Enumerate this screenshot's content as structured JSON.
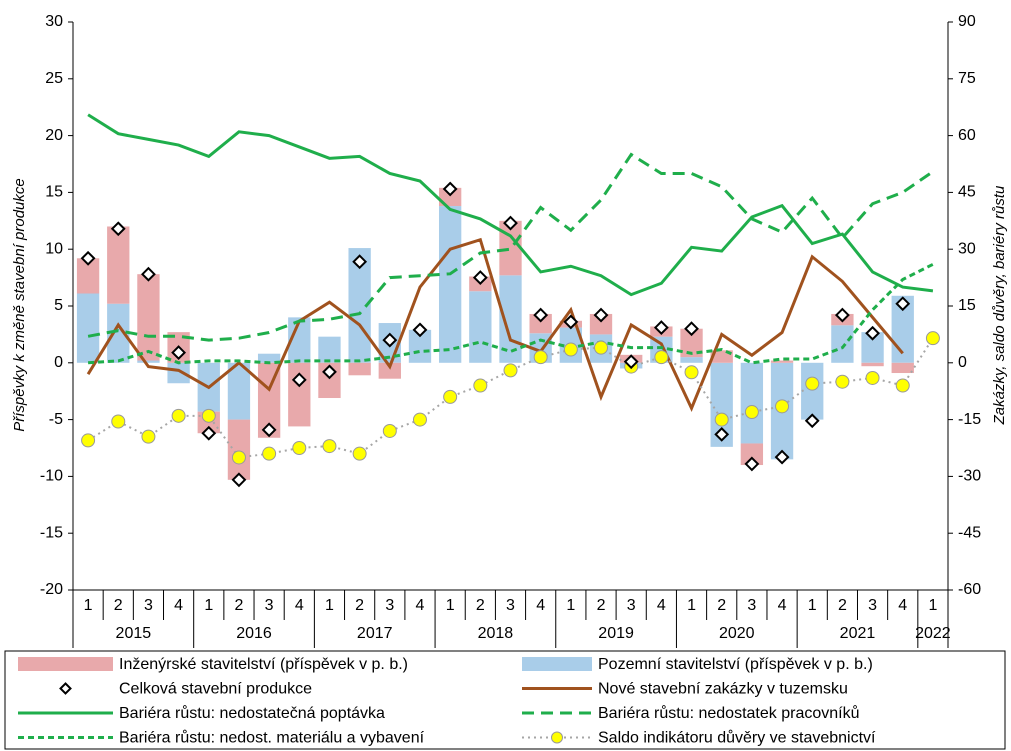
{
  "chart_data": {
    "type": "combo",
    "y_label": "Příspěvky k změně stavební produkce",
    "y2_label": "Zakázky, saldo důvěry, bariéry růstu",
    "categories": [
      "1",
      "2",
      "3",
      "4",
      "1",
      "2",
      "3",
      "4",
      "1",
      "2",
      "3",
      "4",
      "1",
      "2",
      "3",
      "4",
      "1",
      "2",
      "3",
      "4",
      "1",
      "2",
      "3",
      "4",
      "1",
      "2",
      "3",
      "4",
      "1"
    ],
    "x_groups": [
      "2015",
      "2016",
      "2017",
      "2018",
      "2019",
      "2020",
      "2021",
      "2022"
    ],
    "ylim": [
      -20,
      30
    ],
    "yticks": [
      30,
      25,
      20,
      15,
      10,
      5,
      0,
      -5,
      -10,
      -15,
      -20
    ],
    "y2lim": [
      -60,
      90
    ],
    "y2ticks": [
      90,
      75,
      60,
      45,
      30,
      15,
      0,
      -15,
      -30,
      -45,
      -60
    ],
    "grid": false,
    "series": [
      {
        "name": "Inženýrské stavitelství (příspěvek v p. b.)",
        "kind": "bar",
        "color": "#e8a9ab",
        "values": [
          3.1,
          6.8,
          7.6,
          2.7,
          -1.9,
          -5.3,
          -6.6,
          -5.6,
          -3.1,
          -1.1,
          -1.4,
          0,
          1.6,
          1.3,
          4.8,
          1.7,
          0.6,
          1.8,
          0.7,
          0.9,
          2.5,
          1.1,
          -1.9,
          0.2,
          0,
          1.0,
          -0.3,
          -0.9,
          null
        ]
      },
      {
        "name": "Pozemní stavitelství (příspěvek v p. b.)",
        "kind": "bar",
        "color": "#a9cde9",
        "values": [
          6.1,
          5.2,
          0.2,
          -1.8,
          -4.3,
          -5.0,
          0.8,
          4.0,
          2.3,
          10.1,
          3.5,
          2.9,
          13.8,
          6.3,
          7.7,
          2.6,
          3.1,
          2.5,
          -0.5,
          2.3,
          0.5,
          -7.4,
          -7.1,
          -8.5,
          -5.0,
          3.3,
          2.7,
          5.9,
          null
        ]
      },
      {
        "name": "Celková stavební produkce",
        "kind": "marker",
        "color": "#000000",
        "values": [
          9.2,
          11.8,
          7.8,
          0.9,
          -6.2,
          -10.3,
          -5.9,
          -1.5,
          -0.8,
          8.9,
          2.0,
          2.9,
          15.3,
          7.5,
          12.3,
          4.2,
          3.6,
          4.2,
          0.1,
          3.1,
          3.0,
          -6.3,
          -8.9,
          -8.3,
          -5.1,
          4.2,
          2.6,
          5.2,
          null
        ]
      },
      {
        "name": "Nové stavební zakázky v tuzemsku",
        "kind": "line",
        "dash": "solid",
        "axis": "y2",
        "color": "#a0521e",
        "values": [
          -3,
          10,
          -1,
          -2,
          -6.5,
          0,
          -7,
          11,
          16,
          10,
          -1,
          20,
          30,
          32.5,
          6,
          3,
          14,
          -9,
          10,
          5,
          -12,
          7.5,
          2,
          8,
          28,
          21.5,
          12,
          2.5,
          null
        ]
      },
      {
        "name": "Bariéra růstu: nedostatečná poptávka",
        "kind": "line",
        "dash": "solid",
        "axis": "y2",
        "color": "#1fae4b",
        "values": [
          65.5,
          60.5,
          59,
          57.5,
          54.5,
          61,
          60,
          57,
          54,
          54.5,
          50,
          48,
          40.5,
          38,
          33.5,
          24,
          25.5,
          23,
          18,
          21,
          30.5,
          29.5,
          38.5,
          41.5,
          31.5,
          34,
          24,
          20,
          19
        ]
      },
      {
        "name": "Bariéra růstu: nedostatek pracovníků",
        "kind": "line",
        "dash": "long",
        "axis": "y2",
        "color": "#1fae4b",
        "values": [
          7,
          8.5,
          7,
          7,
          6,
          6.5,
          8,
          11,
          11.5,
          13,
          22.5,
          23,
          23.5,
          29,
          30,
          41,
          35,
          43,
          55,
          50,
          50,
          46.5,
          38,
          34.5,
          43.5,
          33,
          42,
          45,
          50.5
        ]
      },
      {
        "name": "Bariéra růstu: nedost. materiálu a vybavení",
        "kind": "line",
        "dash": "short",
        "axis": "y2",
        "color": "#1fae4b",
        "values": [
          0,
          0.5,
          3,
          0,
          0.5,
          0.5,
          0,
          0.5,
          0.5,
          0.5,
          1.5,
          3,
          3.5,
          5.5,
          3,
          6,
          4,
          5.5,
          4,
          4,
          2.5,
          3.5,
          0,
          1,
          1,
          4,
          14,
          22,
          26
        ]
      },
      {
        "name": "Saldo indikátoru důvěry ve stavebnictví",
        "kind": "line",
        "dash": "dotted",
        "markers": true,
        "marker_color": "#ffff00",
        "axis": "y2",
        "color": "#a6a6a6",
        "values": [
          -20.5,
          -15.5,
          -19.5,
          -14,
          -14,
          -25,
          -24,
          -22.5,
          -22,
          -24,
          -18,
          -15,
          -9,
          -6,
          -2,
          1.5,
          3.5,
          4,
          -1,
          1.5,
          -2.5,
          -15,
          -13,
          -11.5,
          -5.5,
          -5,
          -4,
          -6,
          6.5
        ]
      }
    ]
  }
}
